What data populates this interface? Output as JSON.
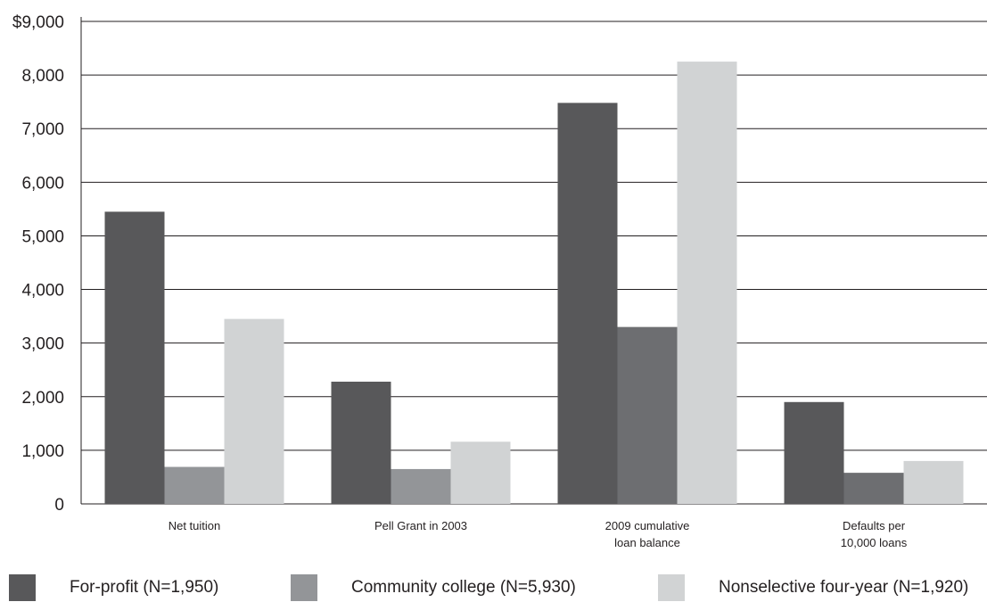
{
  "chart_data": {
    "type": "bar",
    "categories": [
      "Net tuition",
      "Pell Grant in 2003",
      "2009 cumulative\nloan balance",
      "Defaults per\n10,000 loans"
    ],
    "series": [
      {
        "name": "For-profit (N=1,950)",
        "values": [
          5450,
          2280,
          7480,
          1900
        ],
        "color": "#58585a"
      },
      {
        "name": "Community college (N=5,930)",
        "values": [
          690,
          650,
          3300,
          580
        ],
        "color": "#939598"
      },
      {
        "name": "Nonselective four-year (N=1,920)",
        "values": [
          3450,
          1160,
          8250,
          800
        ],
        "color": "#d1d3d4"
      }
    ],
    "second_series_colors": [
      "#939598",
      "#939598",
      "#6d6e71",
      "#6d6e71"
    ],
    "ylim": [
      0,
      9000
    ],
    "yticks": [
      0,
      1000,
      2000,
      3000,
      4000,
      5000,
      6000,
      7000,
      8000,
      9000
    ],
    "ytick_labels": [
      "0",
      "1,000",
      "2,000",
      "3,000",
      "4,000",
      "5,000",
      "6,000",
      "7,000",
      "8,000",
      "$9,000"
    ],
    "grid": true,
    "legend_position": "bottom"
  }
}
